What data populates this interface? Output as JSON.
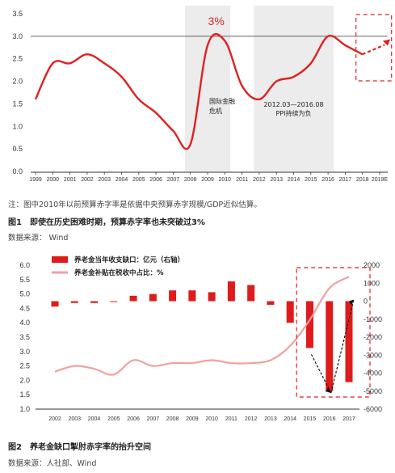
{
  "chart_data": [
    {
      "type": "line",
      "x": [
        "1999",
        "2000",
        "2001",
        "2002",
        "2003",
        "2004",
        "2005",
        "2006",
        "2007",
        "2008",
        "2009",
        "2010",
        "2011",
        "2012",
        "2013",
        "2014",
        "2015",
        "2016",
        "2017",
        "2018",
        "2019E"
      ],
      "series": [
        {
          "values": [
            1.6,
            2.4,
            2.4,
            2.6,
            2.4,
            2.1,
            1.6,
            1.3,
            0.9,
            0.6,
            2.8,
            2.9,
            1.9,
            1.6,
            2.0,
            2.1,
            2.4,
            3.0,
            2.8,
            2.6,
            2.7
          ]
        }
      ],
      "ylim": [
        0,
        3.5
      ],
      "yticks": [
        "0.0",
        "0.5",
        "1.0",
        "1.5",
        "2.0",
        "2.5",
        "3.0",
        "3.5"
      ],
      "reference_line": {
        "y": 3.0,
        "label": "3%"
      },
      "shaded_periods": [
        {
          "from": "2008",
          "to": "2010",
          "label": "国际金融危机"
        },
        {
          "from": "2012",
          "to": "2016",
          "label": "2012.03—2016.08 PPI持续为负"
        }
      ],
      "note": "注：图中2010年以前预算赤字率是依据中央预算赤字规模/GDP近似估算。",
      "caption": "图1　即使在历史困难时期，预算赤字率也未突破过3%",
      "source": "数据来源：  Wind",
      "color": "#e02020"
    },
    {
      "type": "bar+line",
      "categories": [
        "2002",
        "2003",
        "2004",
        "2005",
        "2006",
        "2007",
        "2008",
        "2009",
        "2010",
        "2011",
        "2012",
        "2013",
        "2014",
        "2015",
        "2016",
        "2017"
      ],
      "series": [
        {
          "name": "养老金当年收支缺口：亿元（右轴）",
          "type": "bar",
          "axis": "right",
          "values": [
            -300,
            -100,
            -100,
            0,
            300,
            400,
            600,
            600,
            500,
            1100,
            900,
            -200,
            -1200,
            -2600,
            -5000,
            -4500
          ]
        },
        {
          "name": "养老金补贴在税收中占比：%",
          "type": "line",
          "axis": "left",
          "values": [
            2.3,
            2.5,
            2.4,
            2.2,
            2.7,
            2.5,
            2.6,
            2.6,
            2.7,
            2.6,
            2.6,
            2.7,
            3.2,
            4.1,
            5.2,
            5.6
          ]
        }
      ],
      "ylim_left": [
        1.0,
        6.0
      ],
      "yticks_left": [
        "1.0",
        "1.5",
        "2.0",
        "2.5",
        "3.0",
        "3.5",
        "4.0",
        "4.5",
        "5.0",
        "5.5",
        "6.0"
      ],
      "ylim_right": [
        -6000,
        2000
      ],
      "yticks_right": [
        "2000",
        "1000",
        "0",
        "-1000",
        "-2000",
        "-3000",
        "-4000",
        "-5000",
        "-6000"
      ],
      "caption": "图2　养老金缺口掣肘赤字率的抬升空间",
      "source": "数据来源：人社部、Wind",
      "bar_color": "#e01b1b",
      "line_color": "#f0a0a0"
    }
  ]
}
